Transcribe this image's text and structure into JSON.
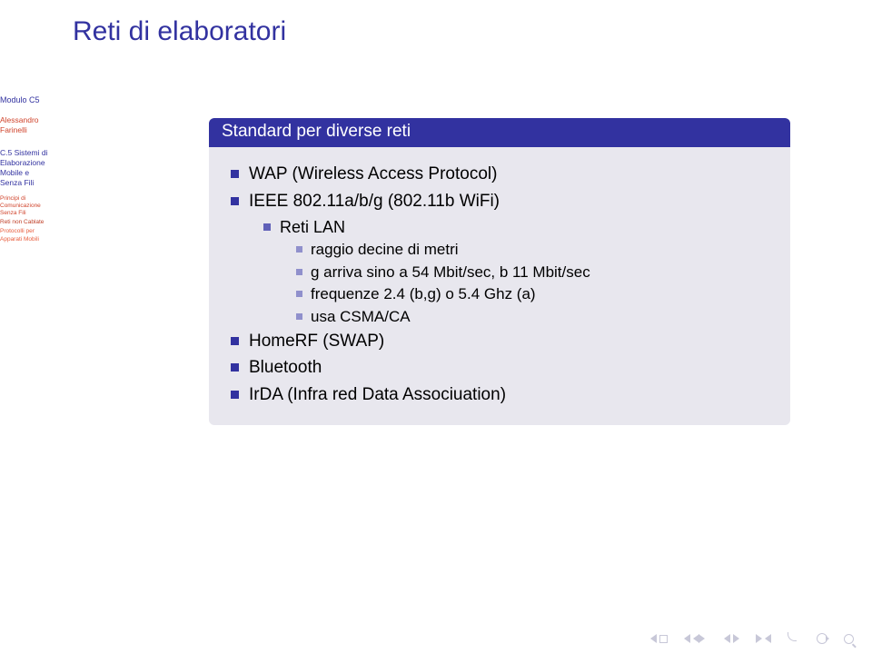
{
  "colors": {
    "title": "#3232a0",
    "highlight": "#d0442c",
    "block_header_bg": "#3232a0",
    "block_header_fg": "#ffffff",
    "block_body_bg": "#e8e7ee",
    "bullet1": "#3232a0",
    "bullet2": "#6060b8",
    "bullet3": "#9090cc",
    "nav": "#c8c8d8"
  },
  "title": "Reti di elaboratori",
  "sidebar": {
    "module": "Modulo C5",
    "author_line1": "Alessandro",
    "author_line2": "Farinelli",
    "section_line1": "C.5 Sistemi di",
    "section_line2": "Elaborazione",
    "section_line3": "Mobile e",
    "section_line4": "Senza Fili",
    "sub1_line1": "Principi di",
    "sub1_line2": "Comunicazione",
    "sub1_line3": "Senza Fili",
    "sub2": "Reti non Cablate",
    "sub3_line1": "Protocolli per",
    "sub3_line2": "Apparati Mobili"
  },
  "block": {
    "title": "Standard per diverse reti",
    "items": {
      "wap": "WAP (Wireless Access Protocol)",
      "ieee": "IEEE 802.11a/b/g (802.11b WiFi)",
      "ieee_sub": {
        "a": "Reti LAN",
        "b": "raggio decine di metri",
        "c": "g arriva sino a 54 Mbit/sec, b 11 Mbit/sec",
        "d": "frequenze 2.4 (b,g) o 5.4 Ghz (a)",
        "e": "usa CSMA/CA"
      },
      "homerf": "HomeRF (SWAP)",
      "bluetooth": "Bluetooth",
      "irda": "IrDA (Infra red Data Associuation)"
    }
  }
}
